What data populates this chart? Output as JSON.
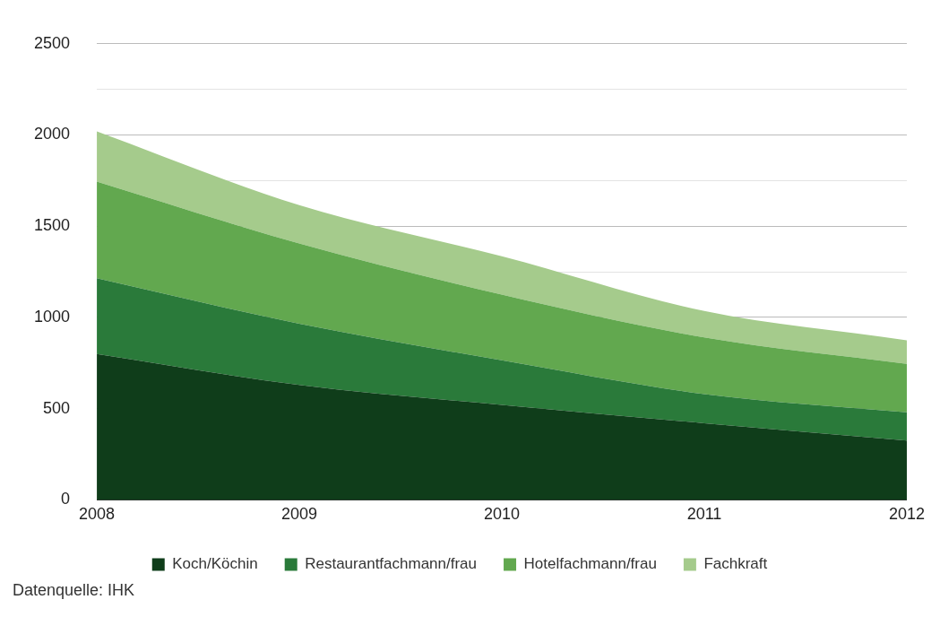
{
  "chart_data": {
    "type": "area",
    "stacked": true,
    "categories": [
      "2008",
      "2009",
      "2010",
      "2011",
      "2012"
    ],
    "series": [
      {
        "name": "Koch/Köchin",
        "color": "#0f3d1a",
        "values": [
          800,
          630,
          520,
          420,
          325
        ]
      },
      {
        "name": "Restaurantfachmann/frau",
        "color": "#2a7a3a",
        "values": [
          415,
          335,
          245,
          160,
          155
        ]
      },
      {
        "name": "Hotelfachmann/frau",
        "color": "#62a84f",
        "values": [
          530,
          440,
          360,
          310,
          265
        ]
      },
      {
        "name": "Fachkraft",
        "color": "#a5cb8c",
        "values": [
          275,
          210,
          210,
          145,
          130
        ]
      }
    ],
    "ylim": [
      0,
      2500
    ],
    "yticks": [
      0,
      500,
      1000,
      {
        "value": 1250,
        "label": null
      },
      1500,
      {
        "value": 1750,
        "label": null
      },
      2000,
      {
        "value": 2250,
        "label": null
      },
      2500
    ],
    "grid": "y",
    "legend": "bottom",
    "annotations": [
      "Datenquelle: IHK"
    ]
  }
}
